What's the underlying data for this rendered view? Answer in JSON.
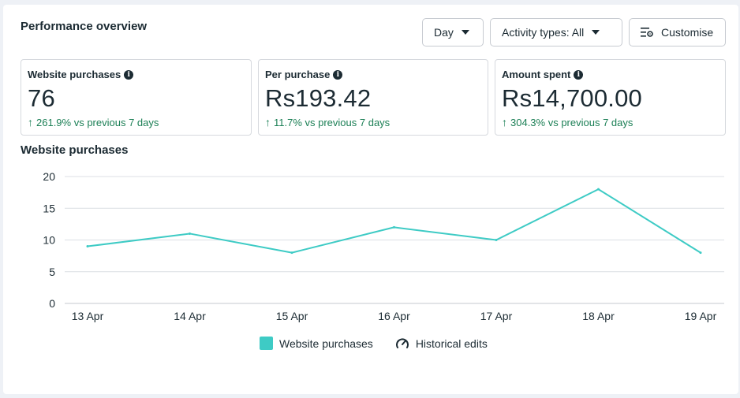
{
  "header": {
    "title": "Performance overview",
    "day_button": "Day",
    "activity_button": "Activity types: All",
    "customise_button": "Customise"
  },
  "cards": [
    {
      "label": "Website purchases",
      "value": "76",
      "change": "261.9% vs previous 7 days"
    },
    {
      "label": "Per purchase",
      "value": "Rs193.42",
      "change": "11.7% vs previous 7 days"
    },
    {
      "label": "Amount spent",
      "value": "Rs14,700.00",
      "change": "304.3% vs previous 7 days"
    }
  ],
  "colors": {
    "accent": "#3ecbc5",
    "positive": "#1b7f55",
    "grid": "#dcdfe4"
  },
  "chart_data": {
    "type": "line",
    "title": "Website purchases",
    "categories": [
      "13 Apr",
      "14 Apr",
      "15 Apr",
      "16 Apr",
      "17 Apr",
      "18 Apr",
      "19 Apr"
    ],
    "series": [
      {
        "name": "Website purchases",
        "values": [
          9,
          11,
          8,
          12,
          10,
          18,
          8
        ]
      }
    ],
    "yticks": [
      0,
      5,
      10,
      15,
      20
    ],
    "ylim": [
      0,
      20
    ],
    "grid": true,
    "legend_position": "bottom",
    "legend": [
      "Website purchases",
      "Historical edits"
    ]
  }
}
